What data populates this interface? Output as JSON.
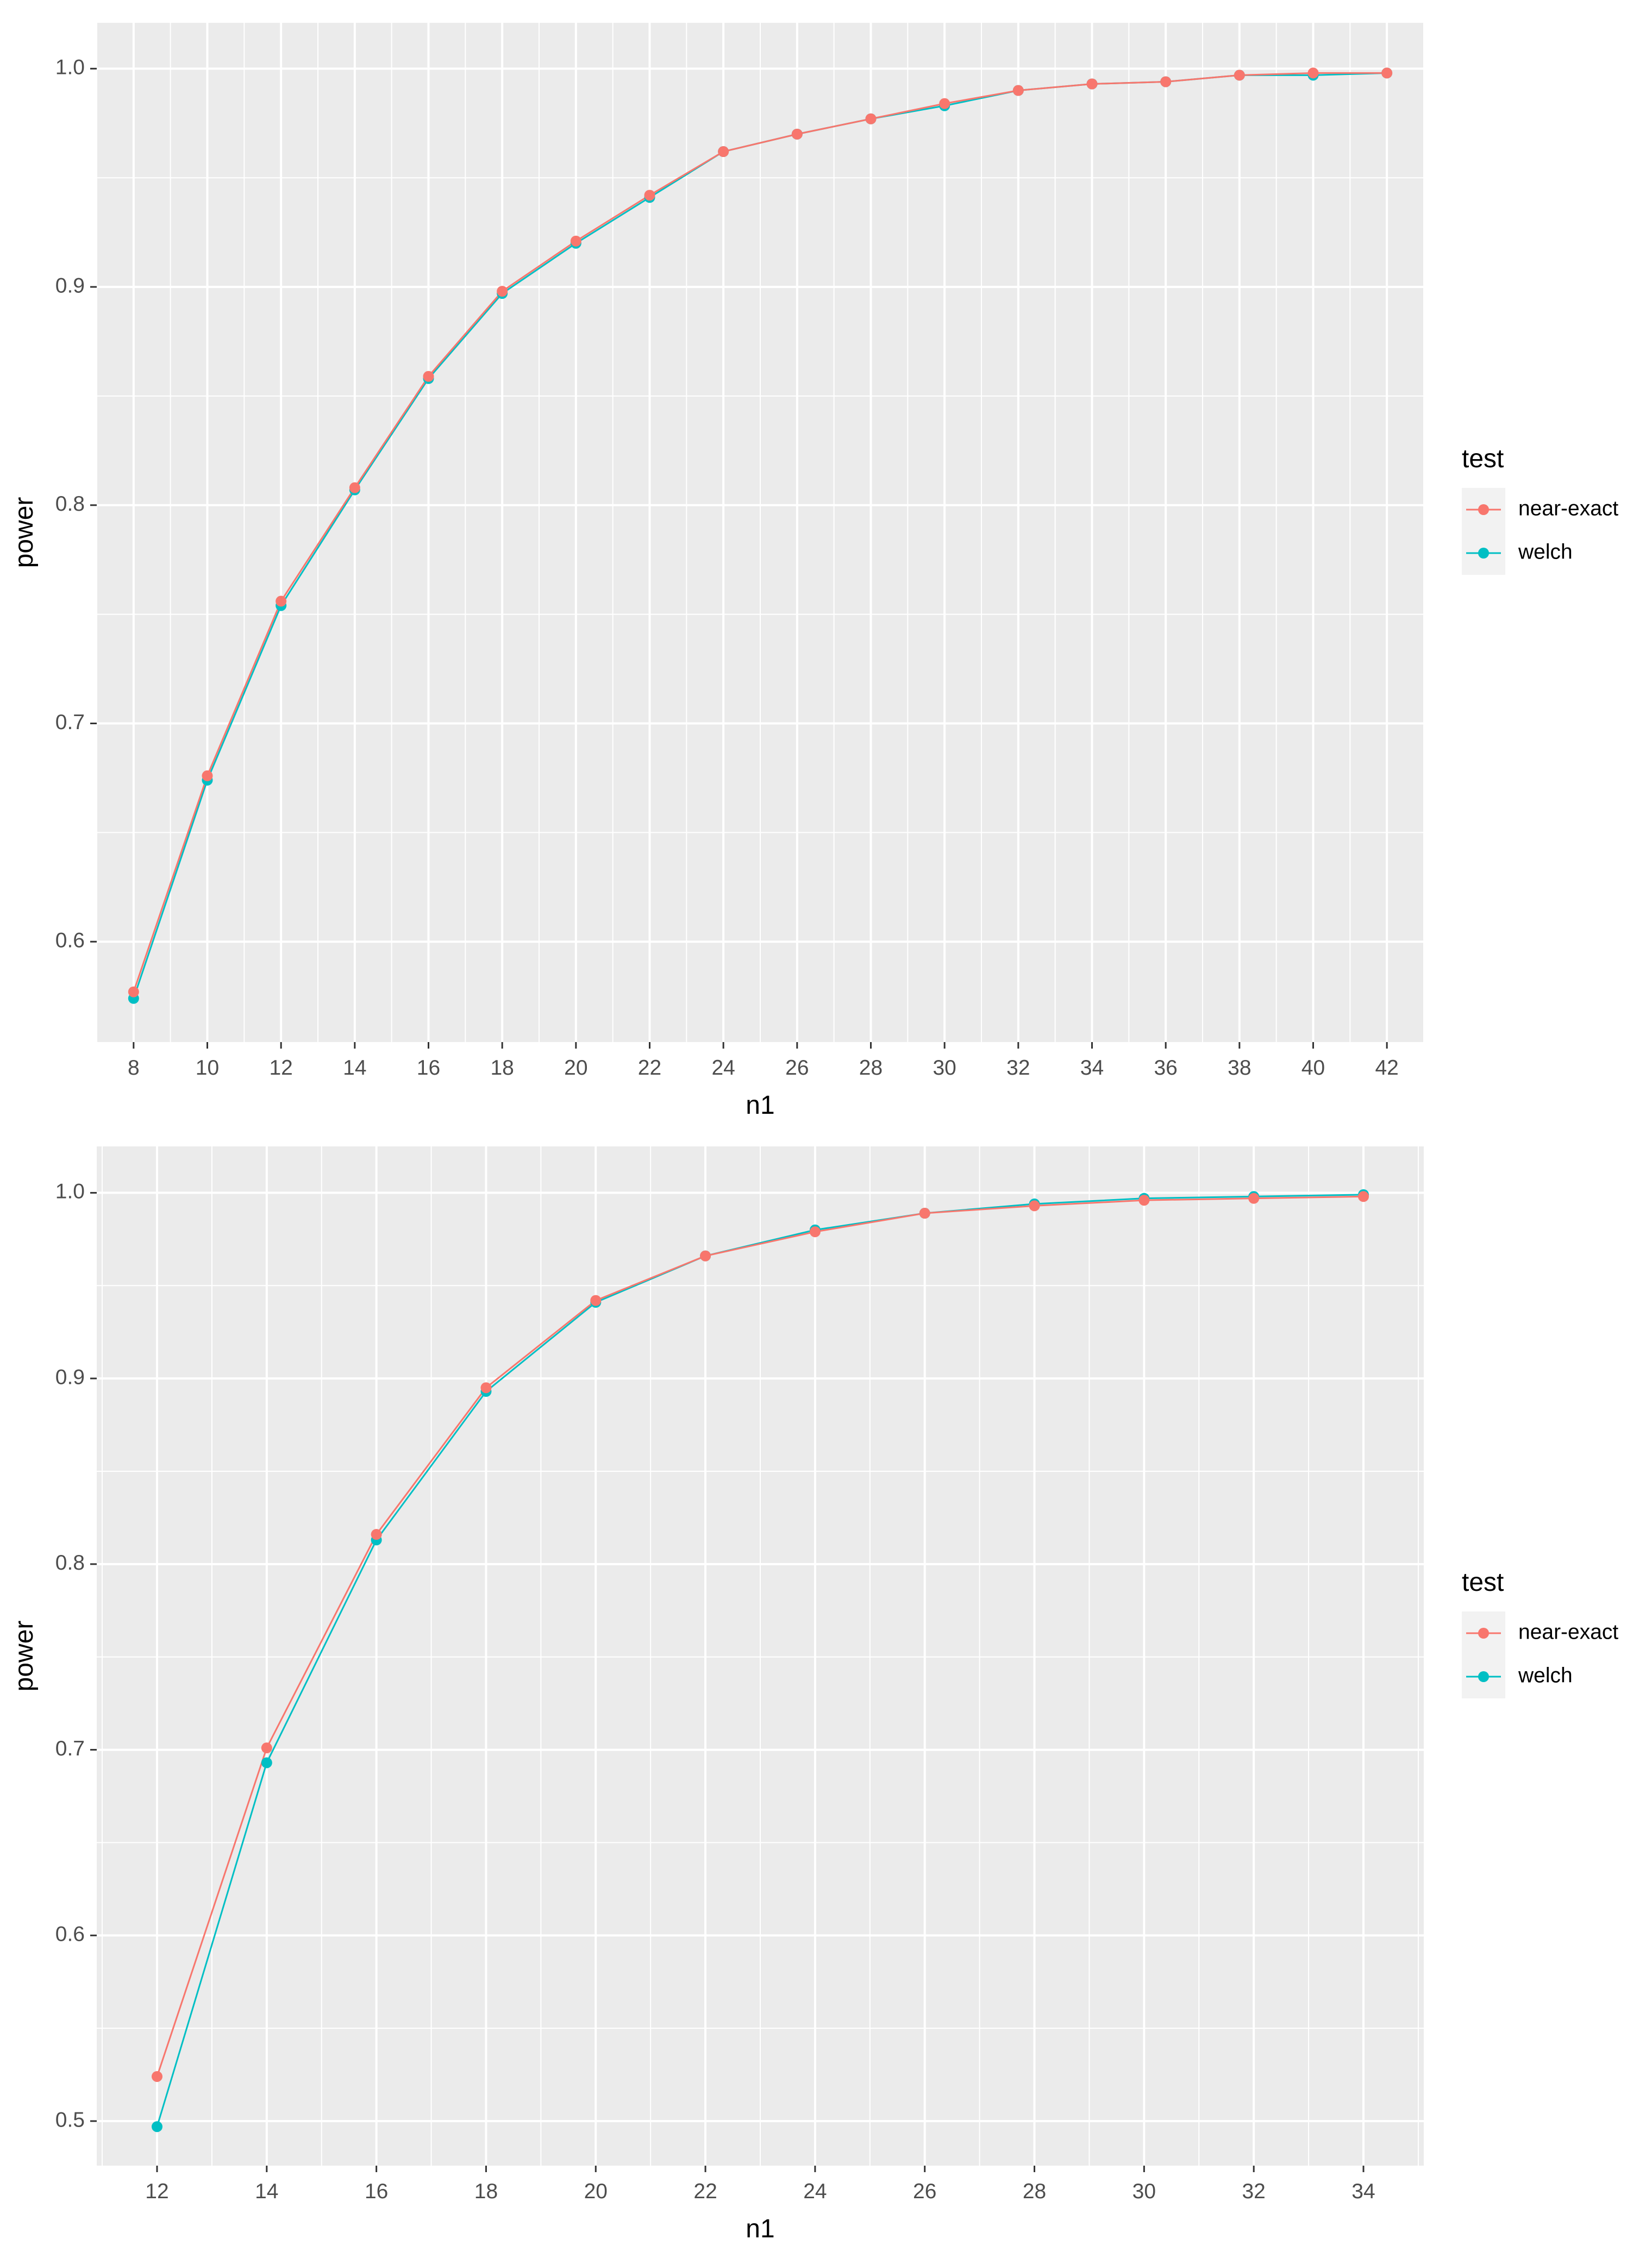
{
  "chart_data": [
    {
      "type": "line",
      "xlabel": "n1",
      "ylabel": "power",
      "xlim": [
        7,
        43
      ],
      "ylim": [
        0.554,
        1.021
      ],
      "xticks": [
        8,
        10,
        12,
        14,
        16,
        18,
        20,
        22,
        24,
        26,
        28,
        30,
        32,
        34,
        36,
        38,
        40,
        42
      ],
      "yticks": [
        0.6,
        0.7,
        0.8,
        0.9,
        1.0
      ],
      "ytick_labels": [
        "0.6",
        "0.7",
        "0.8",
        "0.9",
        "1.0"
      ],
      "grid": true,
      "markers": true,
      "legend": {
        "title": "test",
        "placement": "right"
      },
      "x": [
        8,
        10,
        12,
        14,
        16,
        18,
        20,
        22,
        24,
        26,
        28,
        30,
        32,
        34,
        36,
        38,
        40,
        42
      ],
      "series": [
        {
          "name": "near-exact",
          "color": "#F8766D",
          "values": [
            0.577,
            0.676,
            0.756,
            0.808,
            0.859,
            0.898,
            0.921,
            0.942,
            0.962,
            0.97,
            0.977,
            0.984,
            0.99,
            0.993,
            0.994,
            0.997,
            0.998,
            0.998
          ]
        },
        {
          "name": "welch",
          "color": "#00BFC4",
          "values": [
            0.574,
            0.674,
            0.754,
            0.807,
            0.858,
            0.897,
            0.92,
            0.941,
            0.962,
            0.97,
            0.977,
            0.983,
            0.99,
            0.993,
            0.994,
            0.997,
            0.997,
            0.998
          ]
        }
      ]
    },
    {
      "type": "line",
      "xlabel": "n1",
      "ylabel": "power",
      "xlim": [
        10.9,
        35.1
      ],
      "ylim": [
        0.476,
        1.025
      ],
      "xticks": [
        12,
        14,
        16,
        18,
        20,
        22,
        24,
        26,
        28,
        30,
        32,
        34
      ],
      "yticks": [
        0.5,
        0.6,
        0.7,
        0.8,
        0.9,
        1.0
      ],
      "ytick_labels": [
        "0.5",
        "0.6",
        "0.7",
        "0.8",
        "0.9",
        "1.0"
      ],
      "grid": true,
      "markers": true,
      "legend": {
        "title": "test",
        "placement": "right"
      },
      "x": [
        12,
        14,
        16,
        18,
        20,
        22,
        24,
        26,
        28,
        30,
        32,
        34
      ],
      "series": [
        {
          "name": "near-exact",
          "color": "#F8766D",
          "values": [
            0.524,
            0.701,
            0.816,
            0.895,
            0.942,
            0.966,
            0.979,
            0.989,
            0.993,
            0.996,
            0.997,
            0.998
          ]
        },
        {
          "name": "welch",
          "color": "#00BFC4",
          "values": [
            0.497,
            0.693,
            0.813,
            0.893,
            0.941,
            0.966,
            0.98,
            0.989,
            0.994,
            0.997,
            0.998,
            0.999
          ]
        }
      ]
    }
  ]
}
